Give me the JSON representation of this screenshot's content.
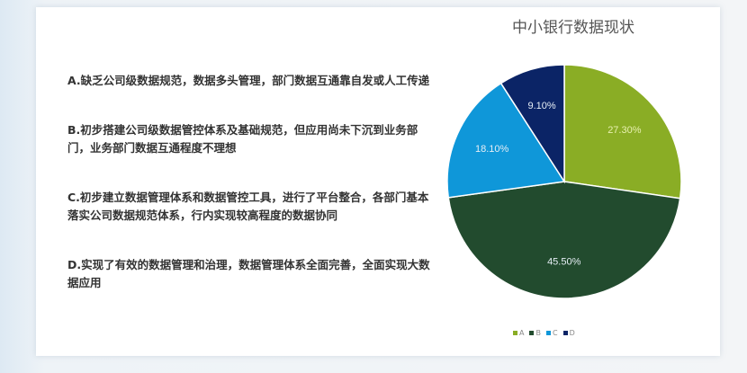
{
  "descriptions": [
    "A.缺乏公司级数据规范，数据多头管理，部门数据互通靠自发或人工传递",
    "B.初步搭建公司级数据管控体系及基础规范，但应用尚未下沉到业务部门，业务部门数据互通程度不理想",
    "C.初步建立数据管理体系和数据管控工具，进行了平台整合，各部门基本落实公司数据规范体系，行内实现较高程度的数据协同",
    "D.实现了有效的数据管理和治理，数据管理体系全面完善，全面实现大数据应用"
  ],
  "chart_data": {
    "type": "pie",
    "title": "中小银行数据现状",
    "categories": [
      "A",
      "B",
      "C",
      "D"
    ],
    "values": [
      27.3,
      45.5,
      18.1,
      9.1
    ],
    "labels": [
      "27.30%",
      "45.50%",
      "18.10%",
      "9.10%"
    ],
    "colors": [
      "#8aad25",
      "#224b2e",
      "#0f97d9",
      "#0b2466"
    ],
    "legend": "bottom",
    "start": "12 o'clock, clockwise"
  }
}
